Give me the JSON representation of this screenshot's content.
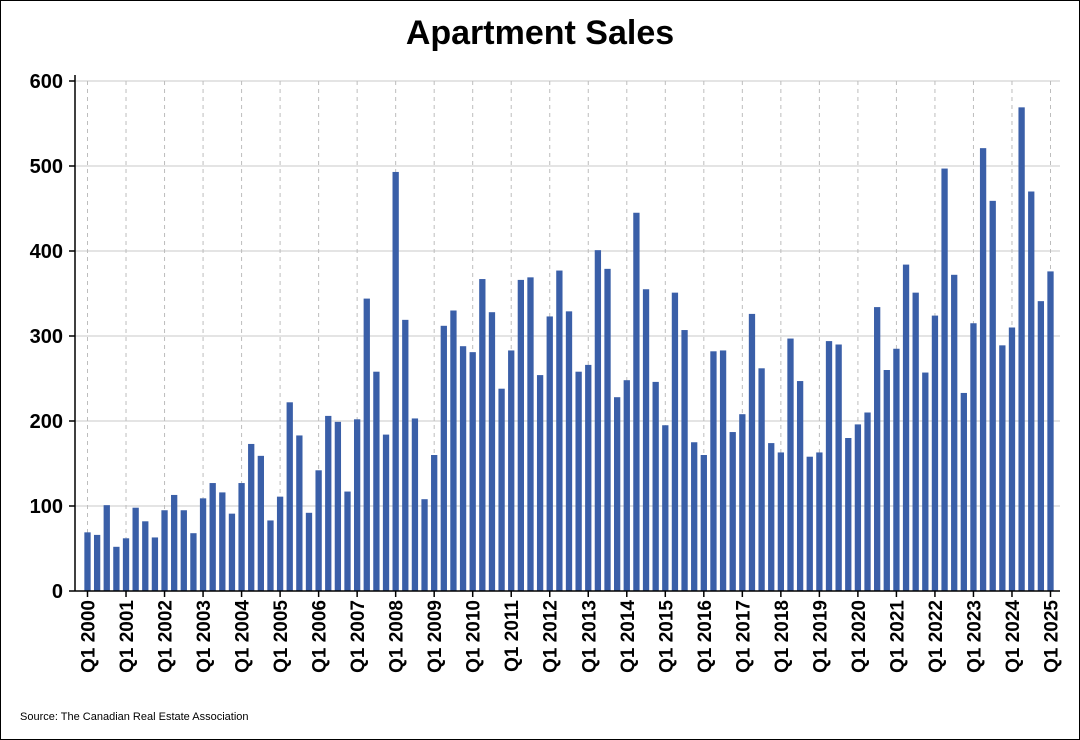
{
  "chart_data": {
    "type": "bar",
    "title": "Apartment Sales",
    "xlabel": "",
    "ylabel": "",
    "ylim": [
      0,
      600
    ],
    "yticks": [
      0,
      100,
      200,
      300,
      400,
      500,
      600
    ],
    "bar_color": "#3A5FA8",
    "grid": {
      "horizontal": true,
      "vertical_dashed": true
    },
    "start_year": 2000,
    "tick_labels": [
      "Q1 2000",
      "Q1 2001",
      "Q1 2002",
      "Q1 2003",
      "Q1 2004",
      "Q1 2005",
      "Q1 2006",
      "Q1 2007",
      "Q1 2008",
      "Q1 2009",
      "Q1 2010",
      "Q1 2011",
      "Q1 2012",
      "Q1 2013",
      "Q1 2014",
      "Q1 2015",
      "Q1 2016",
      "Q1 2017",
      "Q1 2018",
      "Q1 2019",
      "Q1 2020",
      "Q1 2021",
      "Q1 2022",
      "Q1 2023",
      "Q1 2024",
      "Q1 2025"
    ],
    "values": [
      69,
      66,
      101,
      52,
      62,
      98,
      82,
      63,
      95,
      113,
      95,
      68,
      109,
      127,
      116,
      91,
      127,
      173,
      159,
      83,
      111,
      222,
      183,
      92,
      142,
      206,
      199,
      117,
      202,
      344,
      258,
      184,
      493,
      319,
      203,
      108,
      160,
      312,
      330,
      288,
      281,
      367,
      328,
      238,
      283,
      366,
      369,
      254,
      323,
      377,
      329,
      258,
      266,
      401,
      379,
      228,
      248,
      445,
      355,
      246,
      195,
      351,
      307,
      175,
      160,
      282,
      283,
      187,
      208,
      326,
      262,
      174,
      163,
      297,
      247,
      158,
      163,
      294,
      290,
      180,
      196,
      210,
      334,
      260,
      285,
      384,
      351,
      257,
      324,
      497,
      372,
      233,
      315,
      521,
      459,
      289,
      310,
      569,
      470,
      341,
      376
    ]
  },
  "source": "Source: The Canadian Real Estate Association"
}
